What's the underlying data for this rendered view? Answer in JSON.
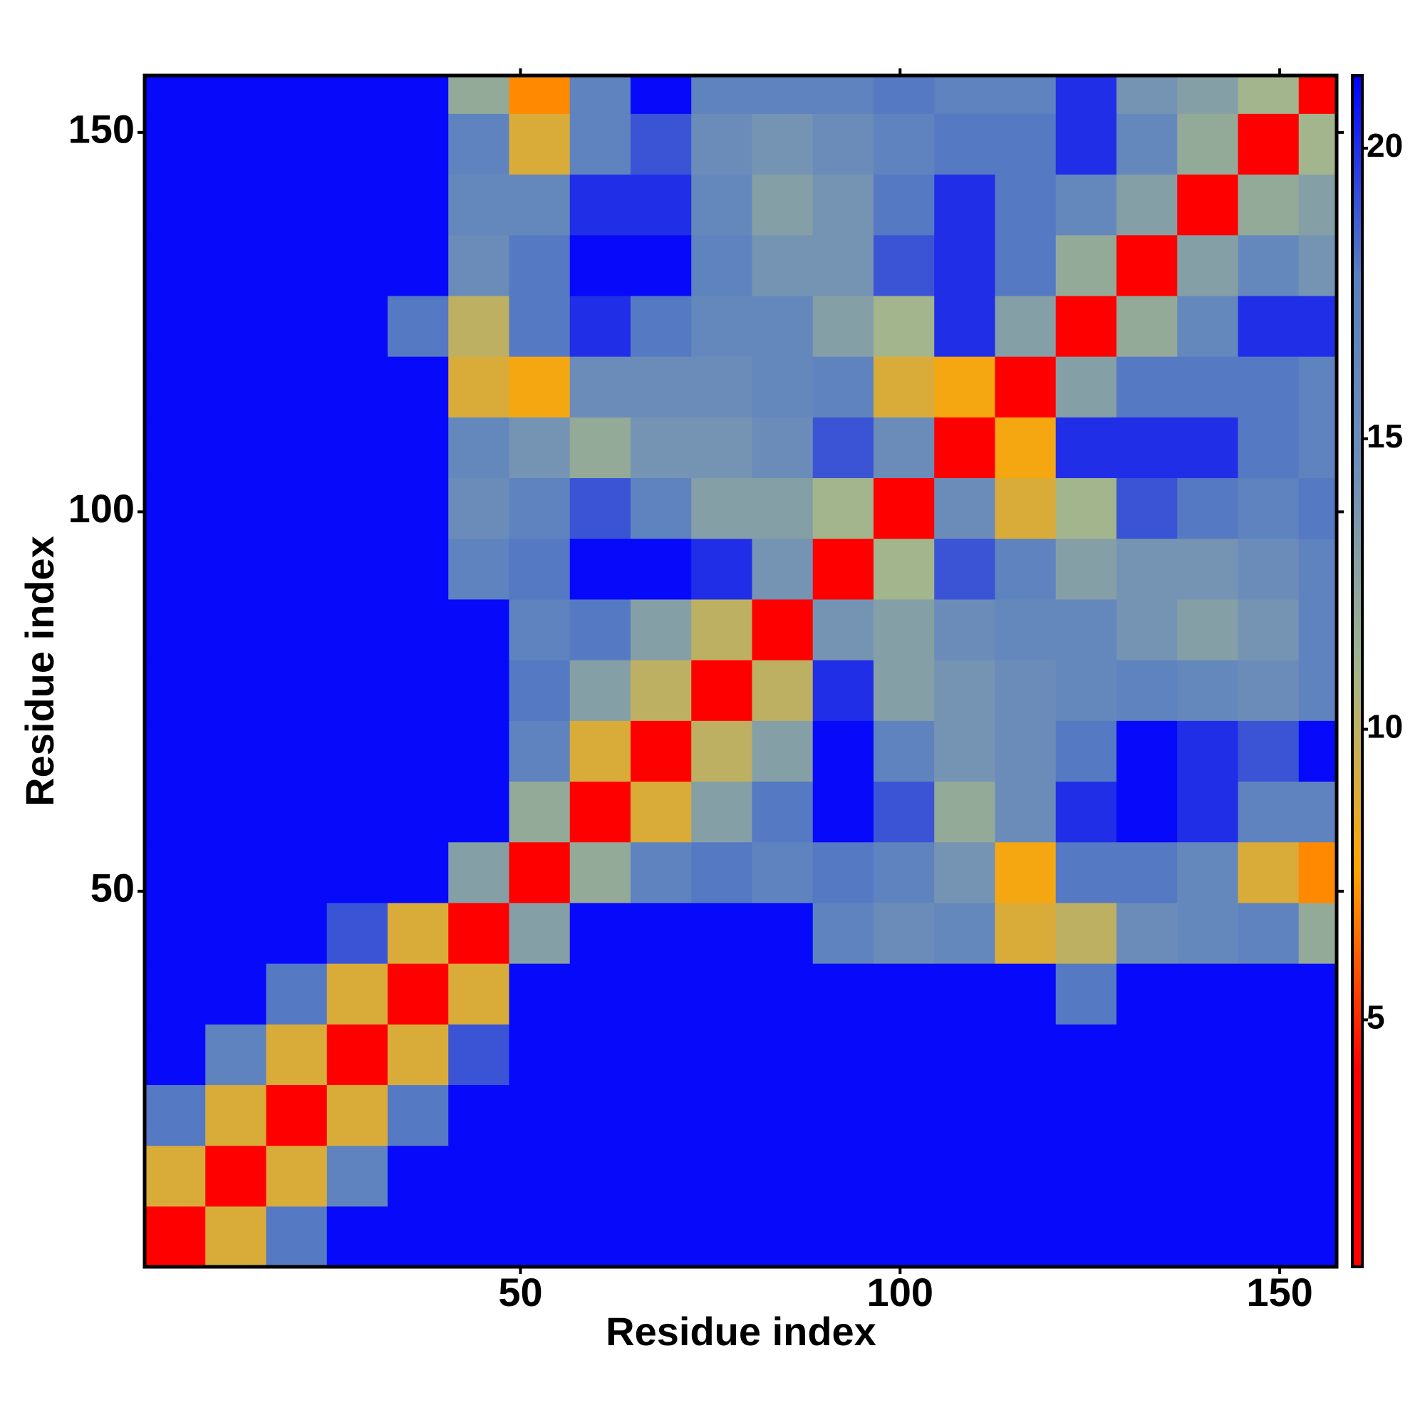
{
  "chart_data": {
    "type": "heatmap",
    "xlabel": "Residue index",
    "ylabel": "Residue index",
    "xlim": [
      0.5,
      157.5
    ],
    "ylim": [
      0.5,
      157.5
    ],
    "xticks": [
      50,
      100,
      150
    ],
    "yticks": [
      50,
      100,
      150
    ],
    "xbins": [
      0.5,
      8.5,
      16.5,
      24.5,
      32.5,
      40.5,
      48.5,
      56.5,
      64.5,
      72.5,
      80.5,
      88.5,
      96.5,
      104.5,
      112.5,
      120.5,
      128.5,
      136.5,
      144.5,
      152.5,
      157.5
    ],
    "ybins": [
      0.5,
      8.5,
      16.5,
      24.5,
      32.5,
      40.5,
      48.5,
      56.5,
      64.5,
      72.5,
      80.5,
      88.5,
      96.5,
      104.5,
      112.5,
      120.5,
      128.5,
      136.5,
      144.5,
      152.5,
      157.5
    ],
    "z": [
      [
        4,
        9,
        18,
        21,
        21,
        21,
        21,
        21,
        21,
        21,
        21,
        21,
        21,
        21,
        21,
        21,
        21,
        21,
        21,
        21
      ],
      [
        9,
        4,
        9,
        17,
        21,
        21,
        21,
        21,
        21,
        21,
        21,
        21,
        21,
        21,
        21,
        21,
        21,
        21,
        21,
        21
      ],
      [
        18,
        9,
        4,
        9,
        18,
        21,
        21,
        21,
        21,
        21,
        21,
        21,
        21,
        21,
        21,
        21,
        21,
        21,
        21,
        21
      ],
      [
        21,
        17,
        9,
        4,
        9,
        19,
        21,
        21,
        21,
        21,
        21,
        21,
        21,
        21,
        21,
        21,
        21,
        21,
        21,
        21
      ],
      [
        21,
        21,
        18,
        9,
        4,
        9,
        21,
        21,
        21,
        21,
        21,
        21,
        21,
        21,
        21,
        18,
        21,
        21,
        21,
        21
      ],
      [
        21,
        21,
        21,
        19,
        9,
        4,
        13,
        21,
        21,
        21,
        21,
        17,
        15,
        16,
        9,
        10,
        15,
        16,
        17,
        12
      ],
      [
        21,
        21,
        21,
        21,
        21,
        13,
        4,
        12,
        17,
        18,
        17,
        18,
        17,
        14,
        8,
        18,
        18,
        16,
        9,
        7
      ],
      [
        21,
        21,
        21,
        21,
        21,
        21,
        12,
        4,
        9,
        13,
        18,
        21,
        19,
        12,
        15,
        20,
        21,
        20,
        17,
        17
      ],
      [
        21,
        21,
        21,
        21,
        21,
        21,
        17,
        9,
        4,
        10,
        13,
        21,
        17,
        14,
        15,
        18,
        21,
        20,
        19,
        21
      ],
      [
        21,
        21,
        21,
        21,
        21,
        21,
        18,
        13,
        10,
        4,
        10,
        20,
        13,
        14,
        15,
        16,
        17,
        16,
        15,
        17
      ],
      [
        21,
        21,
        21,
        21,
        21,
        21,
        17,
        18,
        13,
        10,
        4,
        14,
        13,
        15,
        16,
        16,
        14,
        13,
        14,
        17
      ],
      [
        21,
        21,
        21,
        21,
        21,
        17,
        18,
        21,
        21,
        20,
        14,
        4,
        11,
        19,
        17,
        13,
        14,
        14,
        15,
        17
      ],
      [
        21,
        21,
        21,
        21,
        21,
        15,
        17,
        19,
        17,
        13,
        13,
        11,
        4,
        15,
        9,
        11,
        19,
        18,
        17,
        18
      ],
      [
        21,
        21,
        21,
        21,
        21,
        16,
        14,
        12,
        14,
        14,
        15,
        19,
        15,
        4,
        8,
        20,
        20,
        20,
        18,
        17
      ],
      [
        21,
        21,
        21,
        21,
        21,
        9,
        8,
        15,
        15,
        15,
        16,
        17,
        9,
        8,
        4,
        13,
        18,
        18,
        18,
        17
      ],
      [
        21,
        21,
        21,
        21,
        18,
        10,
        18,
        20,
        18,
        16,
        16,
        13,
        11,
        20,
        13,
        4,
        12,
        16,
        20,
        20
      ],
      [
        21,
        21,
        21,
        21,
        21,
        15,
        18,
        21,
        21,
        17,
        14,
        14,
        19,
        20,
        18,
        12,
        4,
        13,
        16,
        14
      ],
      [
        21,
        21,
        21,
        21,
        21,
        16,
        16,
        20,
        20,
        16,
        13,
        14,
        18,
        20,
        18,
        16,
        13,
        4,
        12,
        13
      ],
      [
        21,
        21,
        21,
        21,
        21,
        17,
        9,
        17,
        19,
        15,
        14,
        15,
        17,
        18,
        18,
        20,
        16,
        12,
        4,
        11
      ],
      [
        21,
        21,
        21,
        21,
        21,
        12,
        7,
        17,
        21,
        17,
        17,
        17,
        18,
        17,
        17,
        20,
        14,
        13,
        11,
        4
      ]
    ],
    "colorbar": {
      "lim": [
        0.75,
        21.25
      ],
      "ticks": [
        5,
        10,
        15,
        20
      ],
      "colors": [
        "#ff0000",
        "#ff0000",
        "#ffa500",
        "#a3b58c",
        "#6f8fb8",
        "#5a7fc0",
        "#0000ff"
      ]
    }
  }
}
